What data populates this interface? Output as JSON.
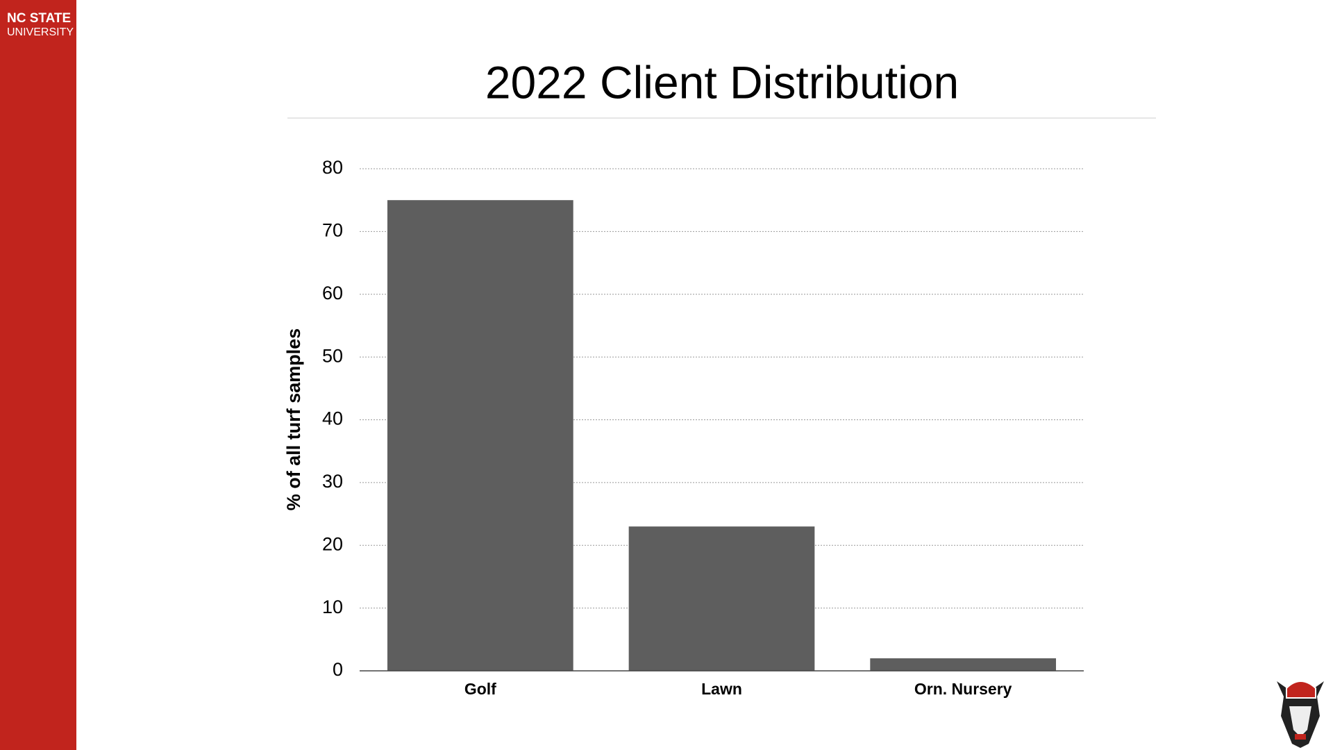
{
  "branding": {
    "line1": "NC STATE",
    "line2": "UNIVERSITY"
  },
  "chart_data": {
    "type": "bar",
    "title": "2022 Client Distribution",
    "y_label": "% of all turf samples",
    "categories": [
      "Golf",
      "Lawn",
      "Orn. Nursery"
    ],
    "values": [
      75,
      23,
      2
    ],
    "color": "#5e5e5e",
    "ylim": [
      0,
      80
    ],
    "yticks": [
      0,
      10,
      20,
      30,
      40,
      50,
      60,
      70,
      80
    ],
    "grid": true
  }
}
